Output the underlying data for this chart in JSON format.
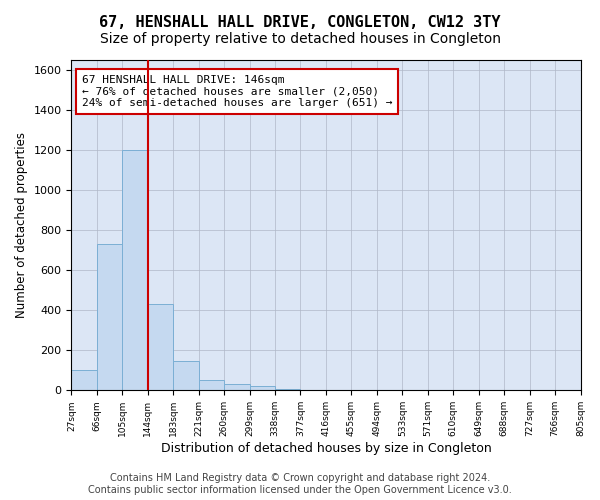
{
  "title1": "67, HENSHALL HALL DRIVE, CONGLETON, CW12 3TY",
  "title2": "Size of property relative to detached houses in Congleton",
  "xlabel": "Distribution of detached houses by size in Congleton",
  "ylabel": "Number of detached properties",
  "bar_values": [
    100,
    730,
    1200,
    430,
    145,
    50,
    30,
    20,
    5,
    0,
    0,
    0,
    0,
    0,
    0,
    0,
    0,
    0,
    0,
    0
  ],
  "tick_labels": [
    "27sqm",
    "66sqm",
    "105sqm",
    "144sqm",
    "183sqm",
    "221sqm",
    "260sqm",
    "299sqm",
    "338sqm",
    "377sqm",
    "416sqm",
    "455sqm",
    "494sqm",
    "533sqm",
    "571sqm",
    "610sqm",
    "649sqm",
    "688sqm",
    "727sqm",
    "766sqm",
    "805sqm"
  ],
  "bar_color": "#c5d9f0",
  "bar_edge_color": "#7bafd4",
  "background_color": "#ffffff",
  "ax_background_color": "#dce6f5",
  "grid_color": "#b0b8c8",
  "red_line_color": "#cc0000",
  "red_line_x": 3,
  "annotation_text": "67 HENSHALL HALL DRIVE: 146sqm\n← 76% of detached houses are smaller (2,050)\n24% of semi-detached houses are larger (651) →",
  "annotation_box_color": "#ffffff",
  "annotation_box_edge_color": "#cc0000",
  "ylim": [
    0,
    1650
  ],
  "yticks": [
    0,
    200,
    400,
    600,
    800,
    1000,
    1200,
    1400,
    1600
  ],
  "footer_text": "Contains HM Land Registry data © Crown copyright and database right 2024.\nContains public sector information licensed under the Open Government Licence v3.0.",
  "title1_fontsize": 11,
  "title2_fontsize": 10,
  "xlabel_fontsize": 9,
  "ylabel_fontsize": 8.5,
  "annotation_fontsize": 8,
  "footer_fontsize": 7
}
